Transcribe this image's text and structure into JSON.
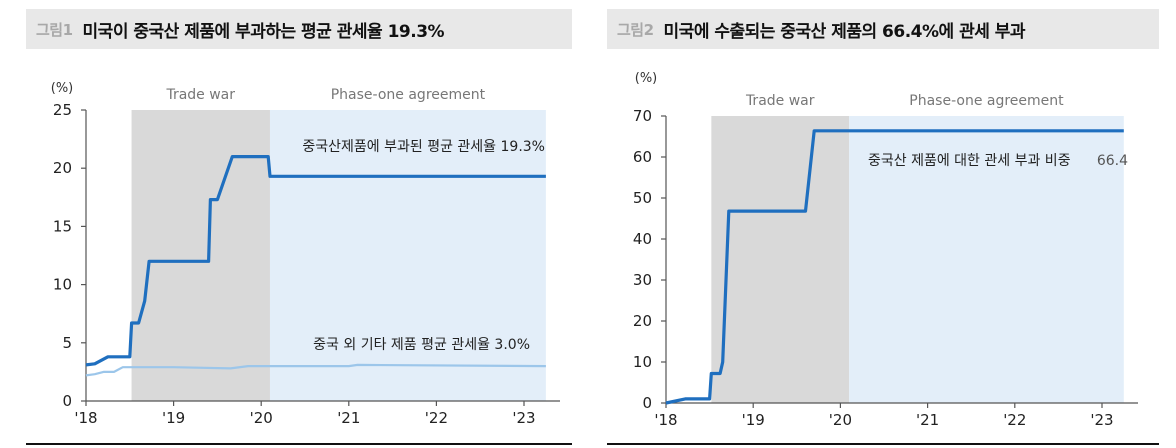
{
  "figures": [
    {
      "number": "그림1",
      "title": "미국이 중국산 제품에 부과하는 평균 관세율 19.3%",
      "unit_label": "(%)",
      "period_labels": {
        "trade_war": "Trade war",
        "phase_one": "Phase-one agreement"
      },
      "annotations": {
        "series1": "중국산제품에 부과된 평균 관세율 19.3%",
        "series2": "중국 외 기타 제품 평균 관세율 3.0%"
      }
    },
    {
      "number": "그림2",
      "title": "미국에 수출되는 중국산 제품의 66.4%에 관세 부과",
      "unit_label": "(%)",
      "period_labels": {
        "trade_war": "Trade war",
        "phase_one": "Phase-one agreement"
      },
      "annotations": {
        "series1": "중국산 제품에 대한 관세 부과 비중",
        "series1_value": "66.4"
      }
    }
  ],
  "colors": {
    "primary_line": "#1f6fbf",
    "secondary_line": "#9cc6ea",
    "trade_war_band": "#d9d9d9",
    "phase_one_band": "#e3eef9",
    "axis": "#555555",
    "period_label": "#777777"
  },
  "chart_data": [
    {
      "type": "line",
      "title": "미국이 중국산 제품에 부과하는 평균 관세율 19.3%",
      "xlabel": "",
      "ylabel": "(%)",
      "ylim": [
        0,
        25
      ],
      "yticks": [
        0,
        5,
        10,
        15,
        20,
        25
      ],
      "xticks": [
        "'18",
        "'19",
        "'20",
        "'21",
        "'22",
        "'23"
      ],
      "shaded_periods": [
        {
          "label": "Trade war",
          "start": 2018.52,
          "end": 2020.1
        },
        {
          "label": "Phase-one agreement",
          "start": 2020.1,
          "end": 2023.25
        }
      ],
      "series": [
        {
          "name": "중국산제품에 부과된 평균 관세율",
          "x": [
            2018.0,
            2018.1,
            2018.25,
            2018.5,
            2018.52,
            2018.6,
            2018.67,
            2018.72,
            2019.4,
            2019.42,
            2019.5,
            2019.67,
            2020.08,
            2020.1,
            2023.25
          ],
          "values": [
            3.1,
            3.2,
            3.8,
            3.8,
            6.7,
            6.7,
            8.6,
            12.0,
            12.0,
            17.3,
            17.3,
            21.0,
            21.0,
            19.3,
            19.3
          ]
        },
        {
          "name": "중국 외 기타 제품 평균 관세율",
          "x": [
            2018.0,
            2018.1,
            2018.2,
            2018.32,
            2018.42,
            2019.0,
            2019.65,
            2019.85,
            2020.5,
            2021.0,
            2021.1,
            2023.25
          ],
          "values": [
            2.2,
            2.3,
            2.5,
            2.5,
            2.9,
            2.9,
            2.8,
            3.0,
            3.0,
            3.0,
            3.1,
            3.0
          ]
        }
      ]
    },
    {
      "type": "line",
      "title": "미국에 수출되는 중국산 제품의 66.4%에 관세 부과",
      "xlabel": "",
      "ylabel": "(%)",
      "ylim": [
        0,
        70
      ],
      "yticks": [
        0,
        10,
        20,
        30,
        40,
        50,
        60,
        70
      ],
      "xticks": [
        "'18",
        "'19",
        "'20",
        "'21",
        "'22",
        "'23"
      ],
      "shaded_periods": [
        {
          "label": "Trade war",
          "start": 2018.52,
          "end": 2020.1
        },
        {
          "label": "Phase-one agreement",
          "start": 2020.1,
          "end": 2023.25
        }
      ],
      "series": [
        {
          "name": "중국산 제품에 대한 관세 부과 비중",
          "x": [
            2018.0,
            2018.22,
            2018.5,
            2018.52,
            2018.62,
            2018.65,
            2018.72,
            2019.6,
            2019.7,
            2023.25
          ],
          "values": [
            0,
            1,
            1,
            7.2,
            7.2,
            10,
            46.8,
            46.8,
            66.4,
            66.4
          ]
        }
      ]
    }
  ]
}
